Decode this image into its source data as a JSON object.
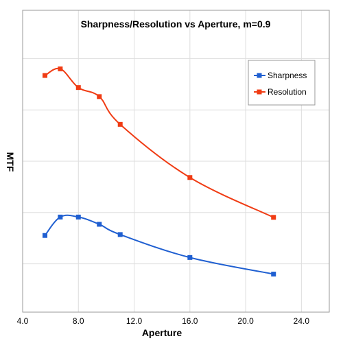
{
  "chart_data": {
    "type": "line",
    "title": "Sharpness/Resolution vs Aperture, m=0.9",
    "xlabel": "Aperture",
    "ylabel": "MTF",
    "xlim": [
      4.0,
      26.0
    ],
    "ylim": [
      0,
      1.0
    ],
    "xticks": [
      "4.0",
      "8.0",
      "12.0",
      "16.0",
      "20.0",
      "24.0"
    ],
    "xtick_values": [
      4.0,
      8.0,
      12.0,
      16.0,
      20.0,
      24.0
    ],
    "ygrid_values": [
      0.16,
      0.33,
      0.5,
      0.67,
      0.84
    ],
    "grid": true,
    "legend_position": "top-right",
    "series": [
      {
        "name": "Sharpness",
        "color": "#1f5fd1",
        "x": [
          5.6,
          6.7,
          8.0,
          9.5,
          11.0,
          16.0,
          22.0
        ],
        "y": [
          0.254,
          0.315,
          0.315,
          0.291,
          0.257,
          0.181,
          0.126
        ]
      },
      {
        "name": "Resolution",
        "color": "#f03c14",
        "x": [
          5.6,
          6.7,
          8.0,
          9.5,
          11.0,
          16.0,
          22.0
        ],
        "y": [
          0.784,
          0.806,
          0.744,
          0.714,
          0.622,
          0.446,
          0.314
        ]
      }
    ]
  }
}
